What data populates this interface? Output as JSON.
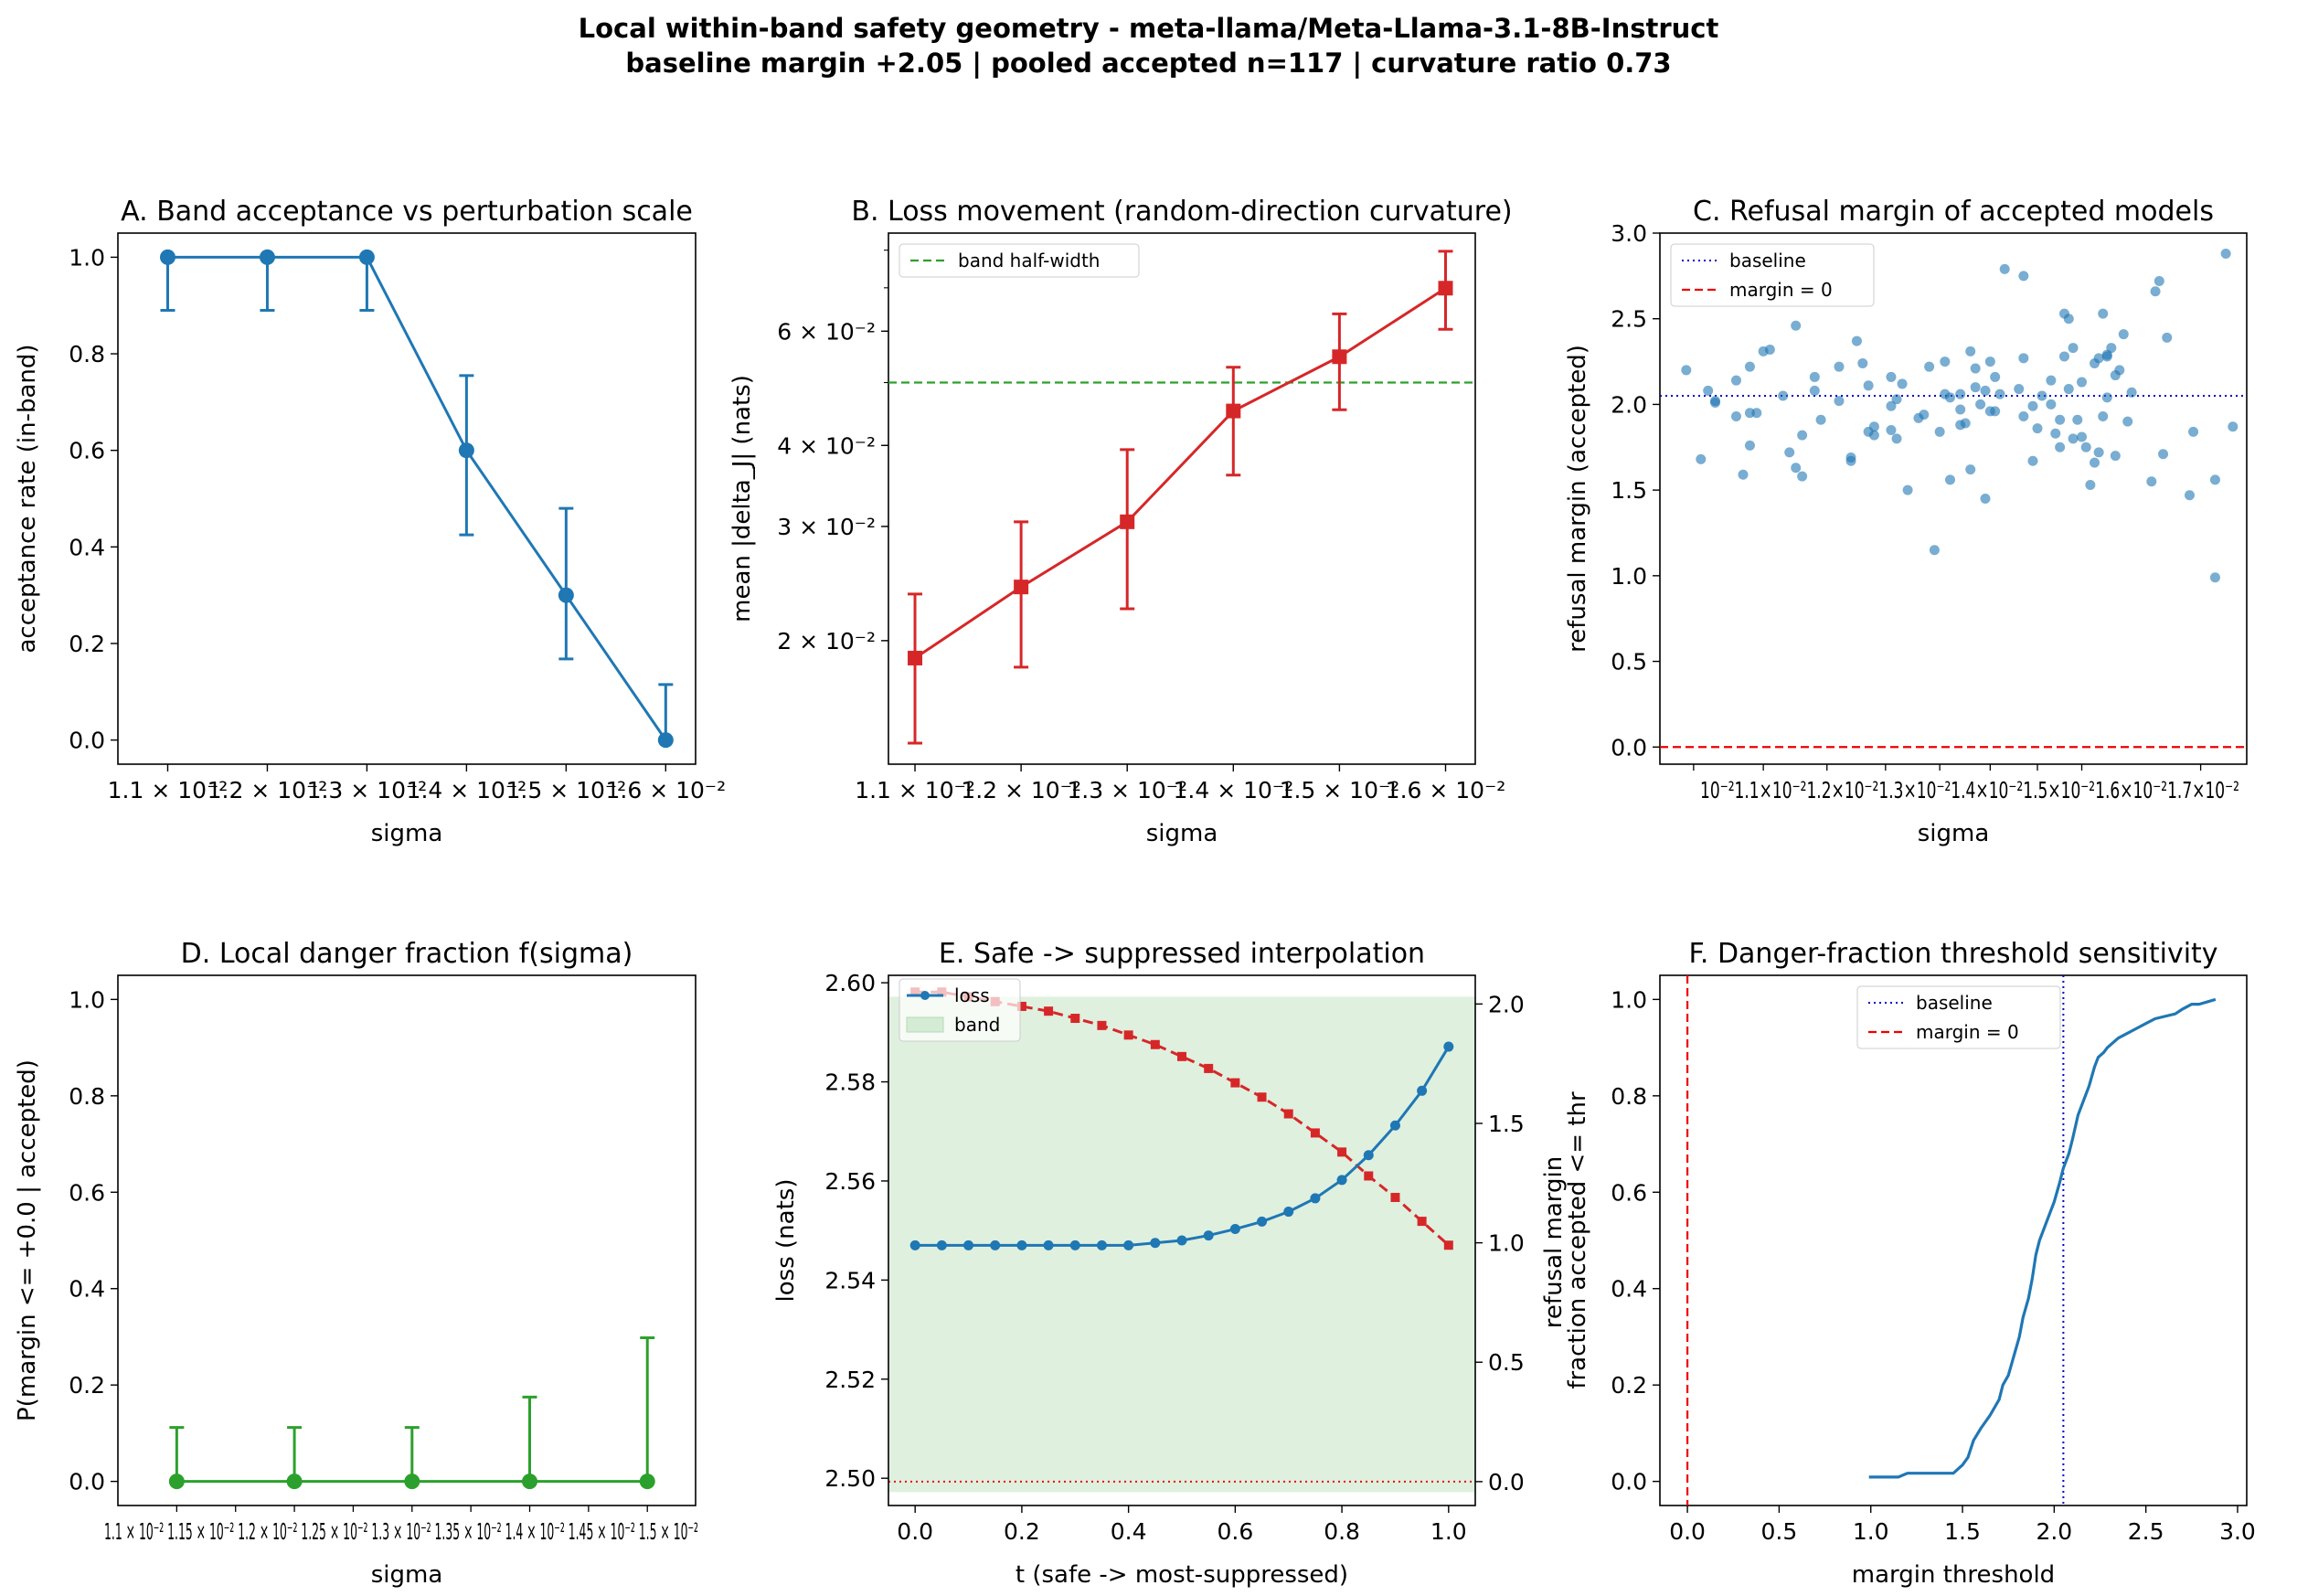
{
  "figure": {
    "title_line1": "Local within-band safety geometry - meta-llama/Meta-Llama-3.1-8B-Instruct",
    "title_line2": "baseline margin +2.05 | pooled accepted n=117 | curvature ratio 0.73"
  },
  "colors": {
    "blue": "#1f77b4",
    "red": "#d62728",
    "green": "#2ca02c",
    "band_fill": "#d4ebd4",
    "baseline_blue": "#0000cc",
    "zero_red": "#ee0000"
  },
  "chart_data": [
    {
      "id": "A",
      "type": "line",
      "title": "A. Band acceptance vs perturbation scale",
      "xlabel": "sigma",
      "ylabel": "acceptance rate (in-band)",
      "x": [
        0.011,
        0.012,
        0.013,
        0.014,
        0.015,
        0.016
      ],
      "xticks": [
        "1.1 × 10⁻²",
        "1.2 × 10⁻²",
        "1.3 × 10⁻²",
        "1.4 × 10⁻²",
        "1.5 × 10⁻²",
        "1.6 × 10⁻²"
      ],
      "y": [
        1.0,
        1.0,
        1.0,
        0.6,
        0.3,
        0.0
      ],
      "err_low": [
        0.89,
        0.89,
        0.89,
        0.425,
        0.168,
        0.0
      ],
      "err_high": [
        1.0,
        1.0,
        1.0,
        0.755,
        0.48,
        0.115
      ],
      "ylim": [
        -0.05,
        1.05
      ],
      "yticks": [
        "0.0",
        "0.2",
        "0.4",
        "0.6",
        "0.8",
        "1.0"
      ]
    },
    {
      "id": "B",
      "type": "line",
      "title": "B. Loss movement (random-direction curvature)",
      "xlabel": "sigma",
      "ylabel": "mean |delta_J| (nats)",
      "x": [
        0.011,
        0.012,
        0.013,
        0.014,
        0.015,
        0.016
      ],
      "xticks": [
        "1.1 × 10⁻²",
        "1.2 × 10⁻²",
        "1.3 × 10⁻²",
        "1.4 × 10⁻²",
        "1.5 × 10⁻²",
        "1.6 × 10⁻²"
      ],
      "y": [
        0.0188,
        0.0242,
        0.0305,
        0.0452,
        0.0548,
        0.0699
      ],
      "err_low": [
        0.0139,
        0.0182,
        0.0224,
        0.036,
        0.0454,
        0.0604
      ],
      "err_high": [
        0.0236,
        0.0305,
        0.0394,
        0.0528,
        0.0638,
        0.0797
      ],
      "log_y": true,
      "ylim": [
        0.0129,
        0.085
      ],
      "yticks": [
        "2 × 10⁻²",
        "3 × 10⁻²",
        "4 × 10⁻²",
        "6 × 10⁻²"
      ],
      "hline": 0.05,
      "legend": [
        "band half-width"
      ]
    },
    {
      "id": "C",
      "type": "scatter",
      "title": "C. Refusal margin of accepted models",
      "xlabel": "sigma",
      "ylabel": "refusal margin (accepted)",
      "xtick_text": "10⁻²1.1×10⁻²1.2×10⁻²1.3×10⁻²1.4×10⁻²1.5×10⁻²1.6×10⁻²1.7×10⁻²",
      "ylim": [
        -0.1,
        3.0
      ],
      "yticks": [
        "0.0",
        "0.5",
        "1.0",
        "1.5",
        "2.0",
        "2.5",
        "3.0"
      ],
      "baseline": 2.05,
      "zero": 0.0,
      "legend": [
        "baseline",
        "margin = 0"
      ],
      "points": [
        [
          0.0099,
          2.2
        ],
        [
          0.0102,
          2.08
        ],
        [
          0.0101,
          1.68
        ],
        [
          0.0103,
          2.01
        ],
        [
          0.0103,
          2.02
        ],
        [
          0.0106,
          2.14
        ],
        [
          0.0106,
          1.93
        ],
        [
          0.0107,
          1.59
        ],
        [
          0.0108,
          2.22
        ],
        [
          0.0108,
          1.95
        ],
        [
          0.0108,
          1.76
        ],
        [
          0.0109,
          1.95
        ],
        [
          0.011,
          2.31
        ],
        [
          0.0111,
          2.32
        ],
        [
          0.0113,
          2.05
        ],
        [
          0.0114,
          1.72
        ],
        [
          0.0115,
          1.63
        ],
        [
          0.0115,
          2.46
        ],
        [
          0.0116,
          1.58
        ],
        [
          0.0116,
          1.82
        ],
        [
          0.0118,
          2.16
        ],
        [
          0.0118,
          2.08
        ],
        [
          0.0119,
          1.91
        ],
        [
          0.0122,
          2.22
        ],
        [
          0.0122,
          2.02
        ],
        [
          0.0124,
          1.69
        ],
        [
          0.0124,
          1.67
        ],
        [
          0.0125,
          2.37
        ],
        [
          0.0126,
          2.24
        ],
        [
          0.0127,
          2.11
        ],
        [
          0.0127,
          1.84
        ],
        [
          0.0128,
          1.82
        ],
        [
          0.0128,
          1.87
        ],
        [
          0.0131,
          1.99
        ],
        [
          0.0131,
          2.16
        ],
        [
          0.0131,
          1.85
        ],
        [
          0.0132,
          2.03
        ],
        [
          0.0132,
          1.8
        ],
        [
          0.0133,
          2.12
        ],
        [
          0.0134,
          1.5
        ],
        [
          0.0136,
          1.92
        ],
        [
          0.0137,
          1.94
        ],
        [
          0.0138,
          2.22
        ],
        [
          0.0139,
          1.15
        ],
        [
          0.0141,
          2.06
        ],
        [
          0.014,
          1.84
        ],
        [
          0.0141,
          2.25
        ],
        [
          0.0142,
          2.04
        ],
        [
          0.0142,
          1.56
        ],
        [
          0.0144,
          1.97
        ],
        [
          0.0144,
          1.88
        ],
        [
          0.0144,
          2.06
        ],
        [
          0.0145,
          1.89
        ],
        [
          0.0146,
          1.62
        ],
        [
          0.0147,
          2.1
        ],
        [
          0.0147,
          2.21
        ],
        [
          0.0146,
          2.31
        ],
        [
          0.0148,
          2.0
        ],
        [
          0.0149,
          2.08
        ],
        [
          0.0149,
          1.45
        ],
        [
          0.015,
          1.96
        ],
        [
          0.015,
          2.25
        ],
        [
          0.0151,
          2.16
        ],
        [
          0.0151,
          1.96
        ],
        [
          0.0152,
          2.06
        ],
        [
          0.0153,
          2.79
        ],
        [
          0.0156,
          2.09
        ],
        [
          0.0157,
          2.75
        ],
        [
          0.0157,
          2.27
        ],
        [
          0.0157,
          1.93
        ],
        [
          0.0159,
          1.99
        ],
        [
          0.0159,
          1.67
        ],
        [
          0.016,
          1.86
        ],
        [
          0.0161,
          2.05
        ],
        [
          0.0163,
          2.0
        ],
        [
          0.0163,
          2.14
        ],
        [
          0.0164,
          1.83
        ],
        [
          0.0165,
          1.75
        ],
        [
          0.0165,
          1.91
        ],
        [
          0.0166,
          2.53
        ],
        [
          0.0166,
          2.28
        ],
        [
          0.0167,
          2.5
        ],
        [
          0.0167,
          2.09
        ],
        [
          0.0168,
          1.8
        ],
        [
          0.0168,
          2.33
        ],
        [
          0.0169,
          1.91
        ],
        [
          0.017,
          1.81
        ],
        [
          0.0171,
          1.75
        ],
        [
          0.017,
          2.13
        ],
        [
          0.0172,
          1.53
        ],
        [
          0.0173,
          2.24
        ],
        [
          0.0173,
          1.66
        ],
        [
          0.0174,
          2.27
        ],
        [
          0.0174,
          1.72
        ],
        [
          0.0175,
          2.53
        ],
        [
          0.0175,
          1.93
        ],
        [
          0.0176,
          2.04
        ],
        [
          0.0176,
          2.29
        ],
        [
          0.0176,
          2.28
        ],
        [
          0.0177,
          2.33
        ],
        [
          0.0178,
          2.17
        ],
        [
          0.0178,
          1.7
        ],
        [
          0.0179,
          2.2
        ],
        [
          0.018,
          2.41
        ],
        [
          0.0181,
          1.9
        ],
        [
          0.0182,
          2.07
        ],
        [
          0.0187,
          1.55
        ],
        [
          0.0188,
          2.66
        ],
        [
          0.0189,
          2.72
        ],
        [
          0.019,
          1.71
        ],
        [
          0.0191,
          2.39
        ],
        [
          0.0197,
          1.47
        ],
        [
          0.0198,
          1.84
        ],
        [
          0.0204,
          1.56
        ],
        [
          0.0204,
          0.99
        ],
        [
          0.0207,
          2.88
        ],
        [
          0.0209,
          1.87
        ]
      ]
    },
    {
      "id": "D",
      "type": "line",
      "title": "D. Local danger fraction f(sigma)",
      "xlabel": "sigma",
      "ylabel": "P(margin <= +0.0 | accepted)",
      "xtick_text": "1.1 × 10⁻² 1.15 × 10⁻² 1.2 × 10⁻² 1.25 × 10⁻² 1.3 × 10⁻² 1.35 × 10⁻² 1.4 × 10⁻² 1.45 × 10⁻² 1.5 × 10⁻²",
      "x": [
        0.011,
        0.012,
        0.013,
        0.014,
        0.015
      ],
      "y": [
        0.0,
        0.0,
        0.0,
        0.0,
        0.0
      ],
      "err_low": [
        0.0,
        0.0,
        0.0,
        0.0,
        0.0
      ],
      "err_high": [
        0.112,
        0.112,
        0.112,
        0.175,
        0.298
      ],
      "ylim": [
        -0.05,
        1.05
      ],
      "yticks": [
        "0.0",
        "0.2",
        "0.4",
        "0.6",
        "0.8",
        "1.0"
      ]
    },
    {
      "id": "E",
      "type": "line",
      "title": "E. Safe -> suppressed interpolation",
      "xlabel": "t (safe -> most-suppressed)",
      "ylabel": "loss (nats)",
      "ylabel2": "refusal margin",
      "t": [
        0.0,
        0.05,
        0.1,
        0.15,
        0.2,
        0.25,
        0.3,
        0.35,
        0.4,
        0.45,
        0.5,
        0.55,
        0.6,
        0.65,
        0.7,
        0.75,
        0.8,
        0.85,
        0.9,
        0.95,
        1.0
      ],
      "loss": [
        2.547,
        2.547,
        2.547,
        2.547,
        2.547,
        2.547,
        2.547,
        2.547,
        2.547,
        2.5475,
        2.548,
        2.549,
        2.5503,
        2.5518,
        2.5538,
        2.5565,
        2.5602,
        2.5652,
        2.5712,
        2.5782,
        2.5871
      ],
      "margin": [
        2.05,
        2.05,
        2.03,
        2.01,
        1.99,
        1.97,
        1.94,
        1.91,
        1.87,
        1.83,
        1.78,
        1.73,
        1.67,
        1.61,
        1.54,
        1.46,
        1.38,
        1.28,
        1.19,
        1.09,
        0.99
      ],
      "ylim": [
        2.4945,
        2.6015
      ],
      "ylim2": [
        -0.1,
        2.12
      ],
      "band": [
        2.4972,
        2.5972
      ],
      "zero": 0.0,
      "xticks": [
        "0.0",
        "0.2",
        "0.4",
        "0.6",
        "0.8",
        "1.0"
      ],
      "yticks": [
        "2.50",
        "2.52",
        "2.54",
        "2.56",
        "2.58",
        "2.60"
      ],
      "yticks2": [
        "0.0",
        "0.5",
        "1.0",
        "1.5",
        "2.0"
      ],
      "legend": [
        "loss",
        "band"
      ]
    },
    {
      "id": "F",
      "type": "line",
      "title": "F. Danger-fraction threshold sensitivity",
      "xlabel": "margin threshold",
      "ylabel": "fraction accepted <= thr",
      "xlim": [
        -0.15,
        3.05
      ],
      "ylim": [
        -0.05,
        1.05
      ],
      "xticks": [
        "0.0",
        "0.5",
        "1.0",
        "1.5",
        "2.0",
        "2.5",
        "3.0"
      ],
      "yticks": [
        "0.0",
        "0.2",
        "0.4",
        "0.6",
        "0.8",
        "1.0"
      ],
      "baseline": 2.05,
      "zero": 0.0,
      "legend": [
        "baseline",
        "margin = 0"
      ],
      "x": [
        0.99,
        1.15,
        1.2,
        1.45,
        1.5,
        1.53,
        1.56,
        1.6,
        1.65,
        1.7,
        1.72,
        1.75,
        1.78,
        1.81,
        1.83,
        1.86,
        1.88,
        1.9,
        1.92,
        1.95,
        1.98,
        2.0,
        2.03,
        2.05,
        2.08,
        2.1,
        2.13,
        2.16,
        2.19,
        2.22,
        2.24,
        2.27,
        2.29,
        2.32,
        2.35,
        2.4,
        2.45,
        2.5,
        2.55,
        2.66,
        2.7,
        2.75,
        2.79,
        2.88
      ],
      "y": [
        0.009,
        0.009,
        0.017,
        0.017,
        0.034,
        0.05,
        0.085,
        0.11,
        0.137,
        0.17,
        0.2,
        0.22,
        0.26,
        0.3,
        0.34,
        0.38,
        0.42,
        0.47,
        0.5,
        0.53,
        0.56,
        0.58,
        0.62,
        0.65,
        0.68,
        0.71,
        0.76,
        0.79,
        0.82,
        0.86,
        0.88,
        0.89,
        0.9,
        0.91,
        0.92,
        0.93,
        0.94,
        0.95,
        0.96,
        0.97,
        0.98,
        0.99,
        0.99,
        1.0
      ]
    }
  ]
}
